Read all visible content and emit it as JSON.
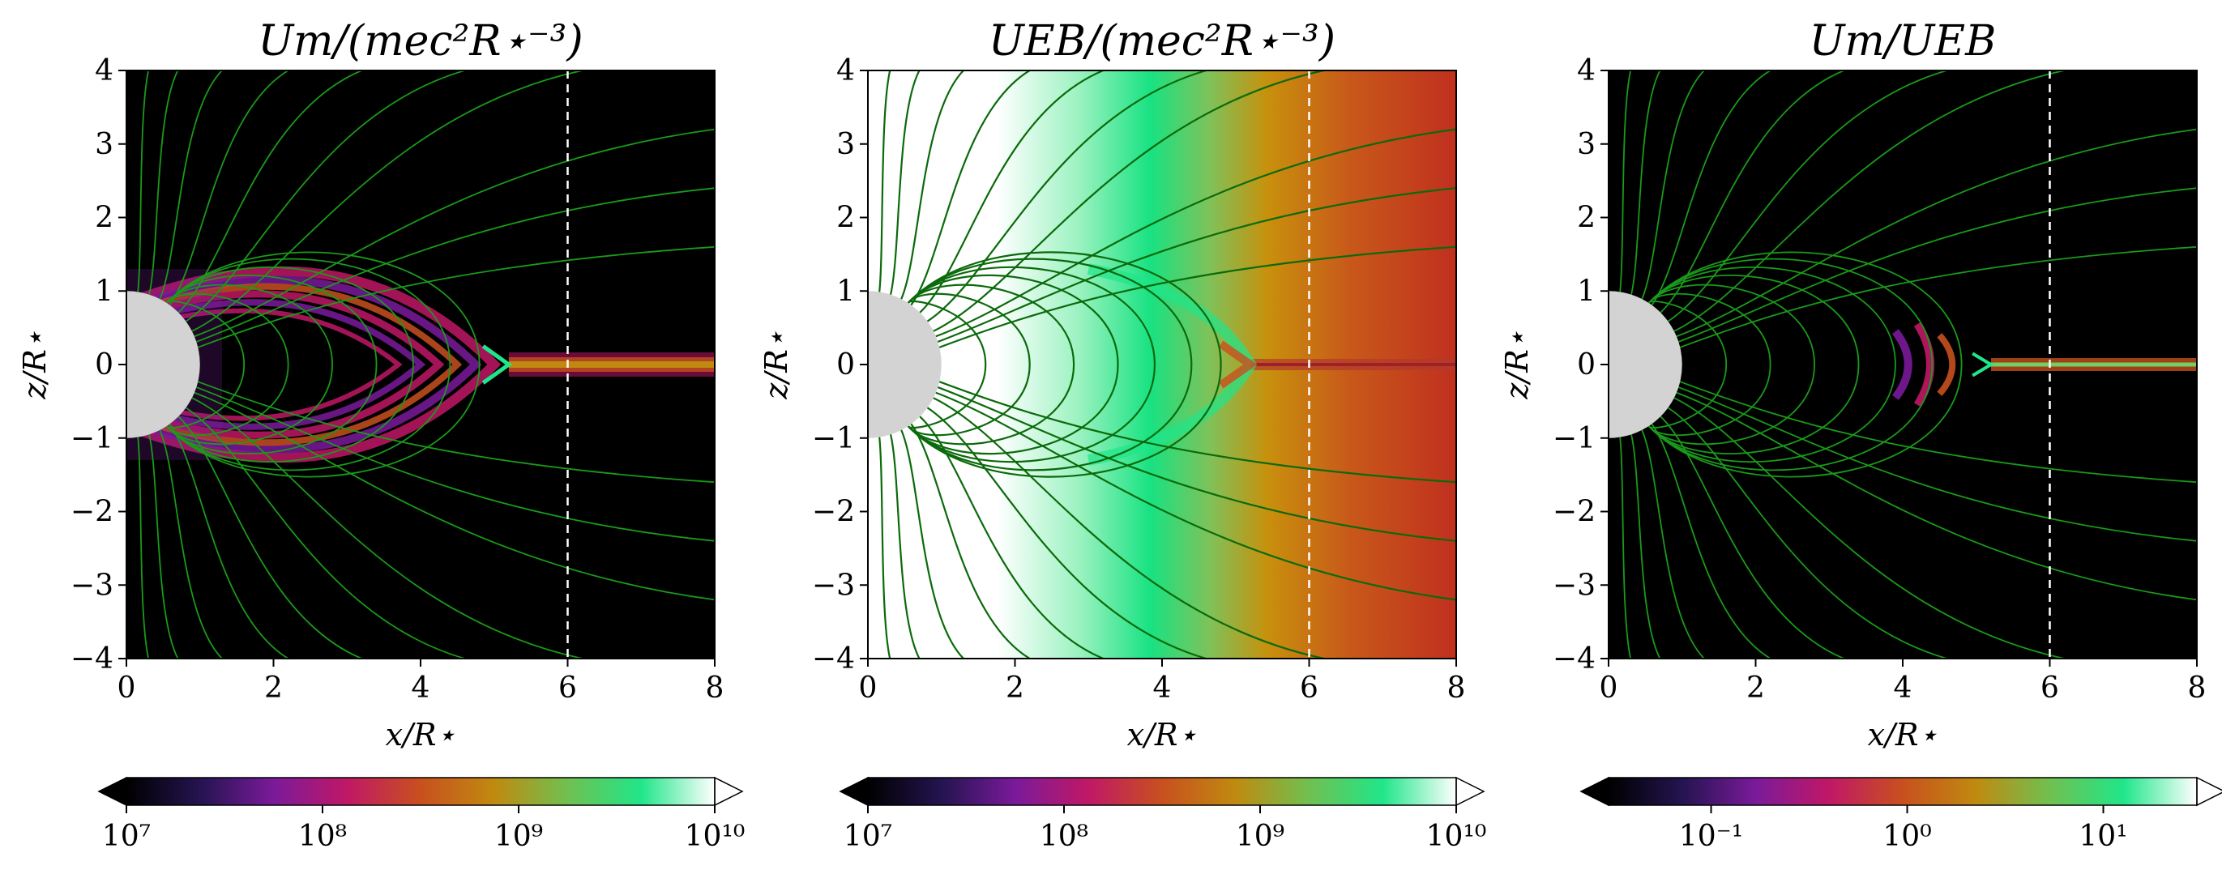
{
  "chart_data": [
    {
      "type": "heatmap",
      "title": "U_m/(m_e c^2 R_⋆^{-3})",
      "title_display": "Um/(mec²R⋆⁻³)",
      "xlabel": "x/R⋆",
      "ylabel": "z/R⋆",
      "xlim": [
        0,
        8
      ],
      "ylim": [
        -4,
        4
      ],
      "xticks": [
        "0",
        "2",
        "4",
        "6",
        "8"
      ],
      "yticks": [
        "−4",
        "−3",
        "−2",
        "−1",
        "0",
        "1",
        "2",
        "3",
        "4"
      ],
      "colorbar": {
        "scale": "log",
        "range": [
          10000000,
          10000000000
        ],
        "ticks": [
          "10⁷",
          "10⁸",
          "10⁹",
          "10¹⁰"
        ],
        "extend": "both"
      },
      "vertical_line_x": 6,
      "star_radius": 1,
      "field_line_color": "#1a9a1a",
      "x_point": 5.2,
      "background": "#000000"
    },
    {
      "type": "heatmap",
      "title": "U_EB/(m_e c^2 R_⋆^{-3})",
      "title_display": "UEB/(mec²R⋆⁻³)",
      "xlabel": "x/R⋆",
      "ylabel": "z/R⋆",
      "xlim": [
        0,
        8
      ],
      "ylim": [
        -4,
        4
      ],
      "xticks": [
        "0",
        "2",
        "4",
        "6",
        "8"
      ],
      "yticks": [
        "−4",
        "−3",
        "−2",
        "−1",
        "0",
        "1",
        "2",
        "3",
        "4"
      ],
      "colorbar": {
        "scale": "log",
        "range": [
          10000000,
          10000000000
        ],
        "ticks": [
          "10⁷",
          "10⁸",
          "10⁹",
          "10¹⁰"
        ],
        "extend": "both"
      },
      "vertical_line_x": 6,
      "star_radius": 1,
      "field_line_color": "#0b6a0b",
      "x_point": 5.2
    },
    {
      "type": "heatmap",
      "title": "U_m/U_EB",
      "title_display": "Um/UEB",
      "xlabel": "x/R⋆",
      "ylabel": "z/R⋆",
      "xlim": [
        0,
        8
      ],
      "ylim": [
        -4,
        4
      ],
      "xticks": [
        "0",
        "2",
        "4",
        "6",
        "8"
      ],
      "yticks": [
        "−4",
        "−3",
        "−2",
        "−1",
        "0",
        "1",
        "2",
        "3",
        "4"
      ],
      "colorbar": {
        "scale": "log",
        "range": [
          0.03,
          30
        ],
        "ticks": [
          "10⁻¹",
          "10⁰",
          "10¹"
        ],
        "extend": "both"
      },
      "vertical_line_x": 6,
      "star_radius": 1,
      "field_line_color": "#1a9a1a",
      "x_point": 5.2,
      "background": "#000000"
    }
  ],
  "colormap": [
    "#000000",
    "#241450",
    "#7a1a9a",
    "#c01866",
    "#c8501e",
    "#c08a10",
    "#70c050",
    "#20e68a",
    "#ffffff"
  ],
  "colors": {
    "star": "#d3d3d3",
    "vline": "#ffffff",
    "axes": "#000000"
  }
}
